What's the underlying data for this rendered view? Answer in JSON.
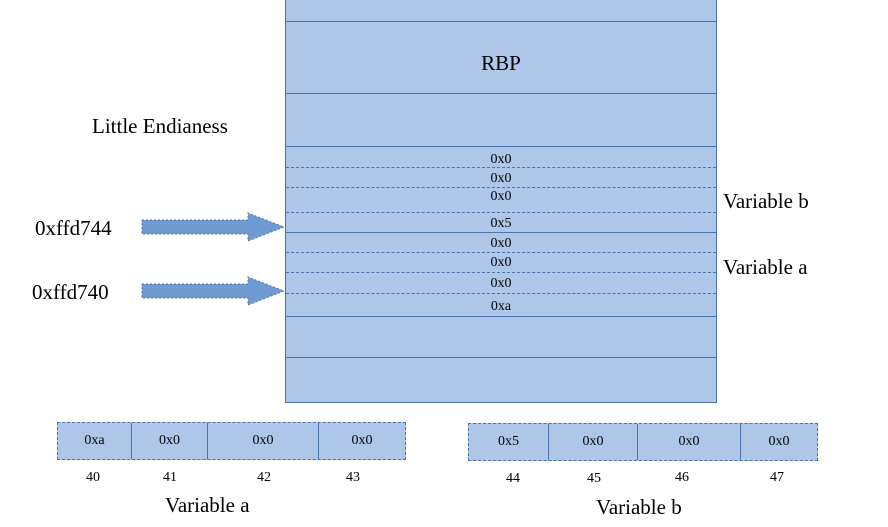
{
  "stack": {
    "rbp_label": "RBP",
    "bytes": [
      "0x0",
      "0x0",
      "0x0",
      "0x5",
      "0x0",
      "0x0",
      "0x0",
      "0xa"
    ]
  },
  "labels": {
    "endianness": "Little Endianess",
    "var_b_side": "Variable  b",
    "var_a_side": "Variable  a",
    "addr_b": "0xffd744",
    "addr_a": "0xffd740",
    "var_a_bottom": "Variable  a",
    "var_b_bottom": "Variable  b"
  },
  "row_a": {
    "cells": [
      "0xa",
      "0x0",
      "0x0",
      "0x0"
    ],
    "indices": [
      "40",
      "41",
      "42",
      "43"
    ]
  },
  "row_b": {
    "cells": [
      "0x5",
      "0x0",
      "0x0",
      "0x0"
    ],
    "indices": [
      "44",
      "45",
      "46",
      "47"
    ]
  },
  "colors": {
    "fill": "#aec6e8",
    "border": "#4a74ad",
    "arrow": "#6f9bd2"
  }
}
